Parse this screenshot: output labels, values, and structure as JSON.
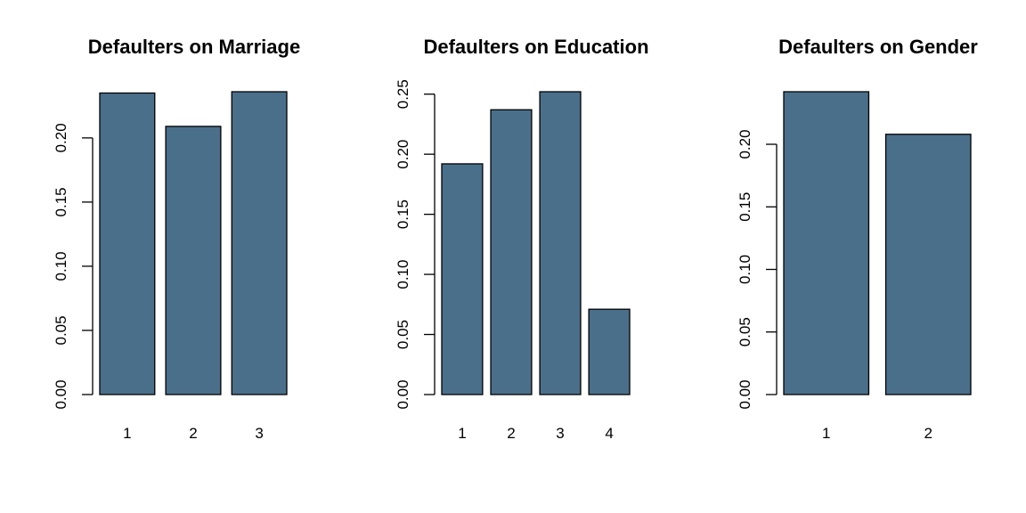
{
  "bar_color": "#4a6f8a",
  "chart_data": [
    {
      "type": "bar",
      "title": "Defaulters on Marriage",
      "categories": [
        "1",
        "2",
        "3"
      ],
      "values": [
        0.235,
        0.209,
        0.236
      ],
      "ylim": [
        0,
        0.236
      ],
      "yticks": [
        "0.00",
        "0.05",
        "0.10",
        "0.15",
        "0.20"
      ],
      "xlabel": "",
      "ylabel": "",
      "grid": false
    },
    {
      "type": "bar",
      "title": "Defaulters on Education",
      "categories": [
        "1",
        "2",
        "3",
        "4"
      ],
      "values": [
        0.192,
        0.237,
        0.252,
        0.071
      ],
      "ylim": [
        0,
        0.252
      ],
      "yticks": [
        "0.00",
        "0.05",
        "0.10",
        "0.15",
        "0.20",
        "0.25"
      ],
      "xlabel": "",
      "ylabel": "",
      "grid": false
    },
    {
      "type": "bar",
      "title": "Defaulters on Gender",
      "categories": [
        "1",
        "2"
      ],
      "values": [
        0.242,
        0.208
      ],
      "ylim": [
        0,
        0.242
      ],
      "yticks": [
        "0.00",
        "0.05",
        "0.10",
        "0.15",
        "0.20"
      ],
      "xlabel": "",
      "ylabel": "",
      "grid": false
    }
  ]
}
